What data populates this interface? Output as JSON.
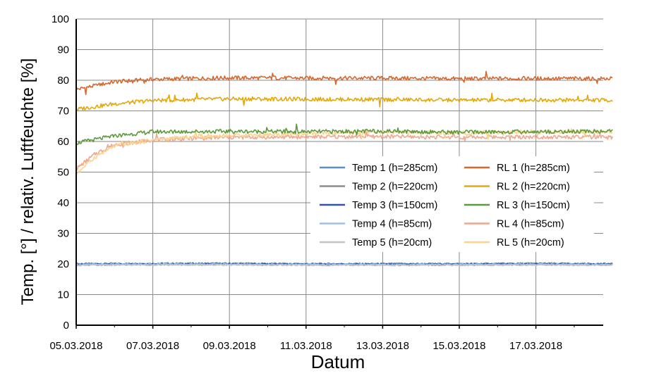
{
  "chart_data": {
    "type": "line",
    "xlabel": "Datum",
    "ylabel": "Temp. [°] / relativ. Luftfeuchte [%]",
    "ylim": [
      0,
      100
    ],
    "yticks": [
      0,
      10,
      20,
      30,
      40,
      50,
      60,
      70,
      80,
      90,
      100
    ],
    "xlim": [
      "2018-03-05",
      "2018-03-19"
    ],
    "xticks": [
      "05.03.2018",
      "07.03.2018",
      "09.03.2018",
      "11.03.2018",
      "13.03.2018",
      "15.03.2018",
      "17.03.2018"
    ],
    "grid": true,
    "legend_position": "center-right",
    "series": [
      {
        "name": "Temp 1 (h=285cm)",
        "color": "#5b8ec4",
        "x": [
          "2018-03-05",
          "2018-03-07",
          "2018-03-09",
          "2018-03-11",
          "2018-03-13",
          "2018-03-15",
          "2018-03-17",
          "2018-03-19"
        ],
        "y": [
          20.1,
          20.2,
          20.2,
          20.1,
          20.1,
          20.1,
          20.2,
          20.1
        ]
      },
      {
        "name": "RL 1 (h=285cm)",
        "color": "#d4682e",
        "x": [
          "2018-03-05",
          "2018-03-06",
          "2018-03-07",
          "2018-03-09",
          "2018-03-11",
          "2018-03-13",
          "2018-03-15",
          "2018-03-17",
          "2018-03-19"
        ],
        "y": [
          77,
          79.5,
          80.3,
          80.8,
          80.7,
          80.7,
          80.5,
          80.6,
          80.5
        ]
      },
      {
        "name": "Temp 2 (h=220cm)",
        "color": "#8c8c8c",
        "x": [
          "2018-03-05",
          "2018-03-07",
          "2018-03-09",
          "2018-03-11",
          "2018-03-13",
          "2018-03-15",
          "2018-03-17",
          "2018-03-19"
        ],
        "y": [
          19.7,
          19.8,
          19.8,
          19.7,
          19.7,
          19.7,
          19.8,
          19.7
        ]
      },
      {
        "name": "RL 2 (h=220cm)",
        "color": "#e3a80b",
        "x": [
          "2018-03-05",
          "2018-03-06",
          "2018-03-07",
          "2018-03-09",
          "2018-03-11",
          "2018-03-13",
          "2018-03-15",
          "2018-03-17",
          "2018-03-19"
        ],
        "y": [
          70.5,
          72.3,
          73.4,
          73.9,
          73.8,
          73.7,
          73.5,
          73.6,
          73.5
        ]
      },
      {
        "name": "Temp 3 (h=150cm)",
        "color": "#2f55a4",
        "x": [
          "2018-03-05",
          "2018-03-07",
          "2018-03-09",
          "2018-03-11",
          "2018-03-13",
          "2018-03-15",
          "2018-03-17",
          "2018-03-19"
        ],
        "y": [
          19.9,
          20.0,
          20.0,
          19.9,
          19.9,
          19.9,
          20.0,
          19.9
        ]
      },
      {
        "name": "RL 3 (h=150cm)",
        "color": "#5c9a3b",
        "x": [
          "2018-03-05",
          "2018-03-06",
          "2018-03-07",
          "2018-03-09",
          "2018-03-11",
          "2018-03-13",
          "2018-03-15",
          "2018-03-17",
          "2018-03-19"
        ],
        "y": [
          59.5,
          61.8,
          63.2,
          63.3,
          63.2,
          63.4,
          63.0,
          63.2,
          63.3
        ]
      },
      {
        "name": "Temp 4 (h=85cm)",
        "color": "#9ec1e6",
        "x": [
          "2018-03-05",
          "2018-03-07",
          "2018-03-09",
          "2018-03-11",
          "2018-03-13",
          "2018-03-15",
          "2018-03-17",
          "2018-03-19"
        ],
        "y": [
          19.8,
          19.9,
          19.9,
          19.8,
          19.8,
          19.8,
          19.9,
          19.8
        ]
      },
      {
        "name": "RL 4 (h=85cm)",
        "color": "#eea890",
        "x": [
          "2018-03-05",
          "2018-03-05.5",
          "2018-03-06",
          "2018-03-07",
          "2018-03-08",
          "2018-03-09",
          "2018-03-11",
          "2018-03-13",
          "2018-03-15",
          "2018-03-17",
          "2018-03-19"
        ],
        "y": [
          51,
          56,
          59,
          60.5,
          61,
          61.3,
          61.5,
          61.6,
          61.4,
          61.5,
          61.3
        ]
      },
      {
        "name": "Temp 5 (h=20cm)",
        "color": "#c4c4c4",
        "x": [
          "2018-03-05",
          "2018-03-07",
          "2018-03-09",
          "2018-03-11",
          "2018-03-13",
          "2018-03-15",
          "2018-03-17",
          "2018-03-19"
        ],
        "y": [
          19.6,
          19.7,
          19.7,
          19.6,
          19.6,
          19.6,
          19.7,
          19.6
        ]
      },
      {
        "name": "RL 5 (h=20cm)",
        "color": "#fcd28c",
        "x": [
          "2018-03-05",
          "2018-03-05.5",
          "2018-03-06",
          "2018-03-07",
          "2018-03-08",
          "2018-03-09",
          "2018-03-11",
          "2018-03-13",
          "2018-03-15",
          "2018-03-17",
          "2018-03-19"
        ],
        "y": [
          49.5,
          55,
          58.5,
          60.5,
          61.5,
          62,
          62.5,
          63,
          62.8,
          63.2,
          63
        ]
      }
    ]
  }
}
